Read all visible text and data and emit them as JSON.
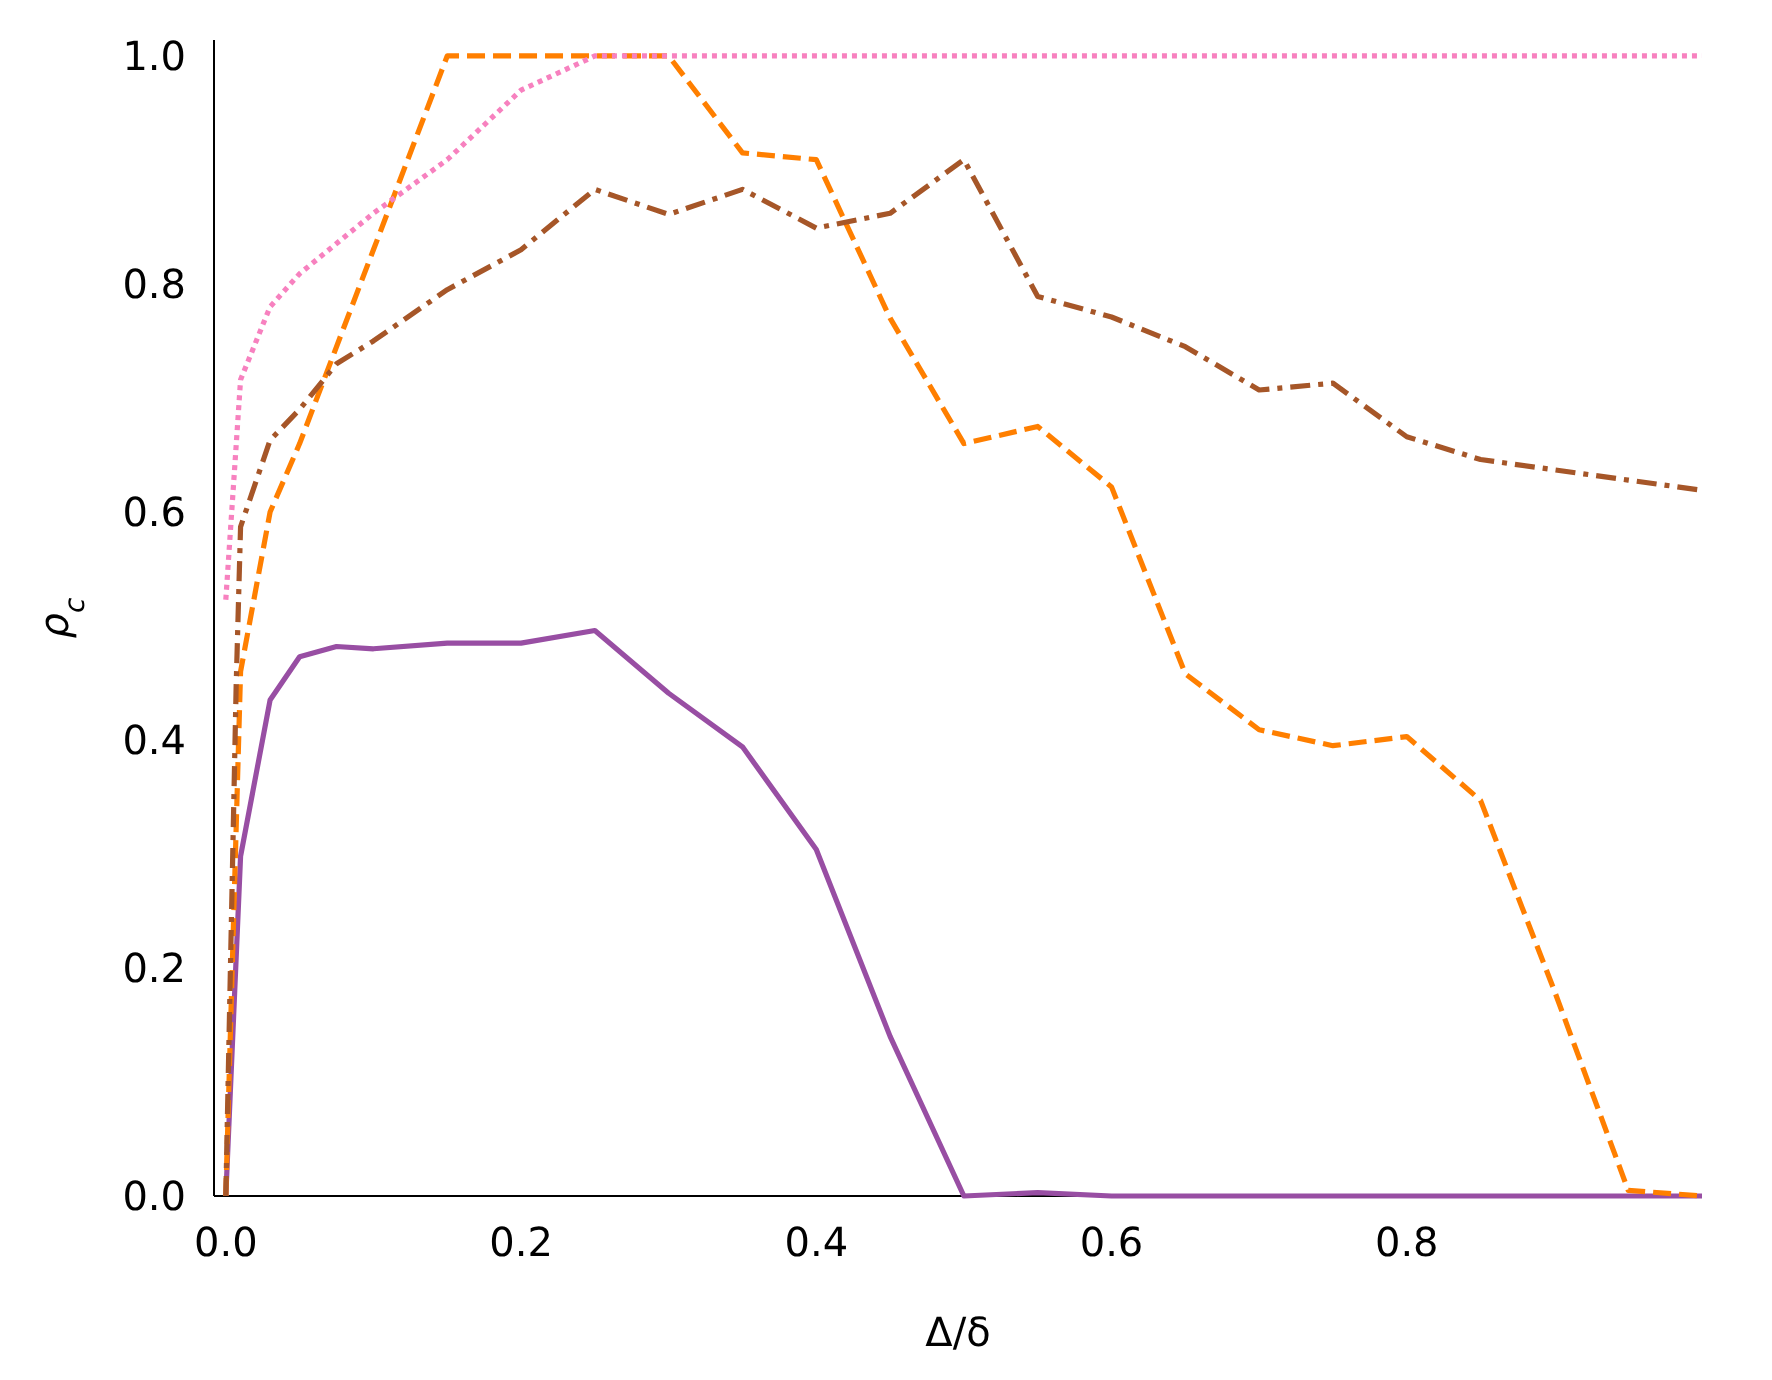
{
  "chart_data": {
    "type": "line",
    "xlabel": "Δ/δ",
    "ylabel": "ρ$_{c}$",
    "xlim": [
      -0.008,
      1
    ],
    "ylim": [
      0,
      1.014
    ],
    "xticks": [
      {
        "value": 0,
        "label": "0.0"
      },
      0.2,
      0.4,
      0.6,
      0.8
    ],
    "yticks": [
      {
        "value": 0,
        "label": "0.0"
      },
      0.2,
      0.4,
      0.6,
      0.8,
      {
        "value": 1,
        "label": "1.0"
      }
    ],
    "grid": false,
    "marker": "none",
    "series": [
      {
        "color": "#984ea3",
        "line_style": "solid",
        "x": [
          0,
          0.01,
          0.03,
          0.05,
          0.075,
          0.1,
          0.15,
          0.2,
          0.25,
          0.3,
          0.35,
          0.4,
          0.45,
          0.5,
          0.55,
          0.6,
          0.65,
          0.7,
          0.75,
          0.8,
          0.85,
          0.9,
          0.95,
          1
        ],
        "values": [
          0,
          0.298,
          0.435,
          0.473,
          0.482,
          0.48,
          0.485,
          0.485,
          0.496,
          0.441,
          0.394,
          0.304,
          0.14,
          0,
          0.003,
          0,
          0,
          0,
          0,
          0,
          0,
          0,
          0,
          0
        ]
      },
      {
        "color": "#ff7f00",
        "line_style": "dashed",
        "x": [
          0,
          0.01,
          0.03,
          0.05,
          0.1,
          0.15,
          0.2,
          0.25,
          0.3,
          0.35,
          0.4,
          0.45,
          0.5,
          0.55,
          0.6,
          0.65,
          0.7,
          0.75,
          0.8,
          0.85,
          0.9,
          0.95,
          1
        ],
        "values": [
          0,
          0.46,
          0.6,
          0.66,
          0.83,
          1,
          1,
          1,
          1,
          0.915,
          0.909,
          0.77,
          0.66,
          0.675,
          0.622,
          0.458,
          0.409,
          0.395,
          0.403,
          0.347,
          0.18,
          0.005,
          0
        ]
      },
      {
        "color": "#a65628",
        "line_style": "dashdot",
        "x": [
          0,
          0.007,
          0.01,
          0.03,
          0.05,
          0.075,
          0.1,
          0.15,
          0.2,
          0.25,
          0.3,
          0.35,
          0.4,
          0.45,
          0.5,
          0.55,
          0.6,
          0.65,
          0.7,
          0.75,
          0.8,
          0.85,
          0.9,
          0.95,
          1
        ],
        "values": [
          0,
          0.447,
          0.587,
          0.663,
          0.69,
          0.73,
          0.75,
          0.795,
          0.83,
          0.883,
          0.861,
          0.883,
          0.849,
          0.862,
          0.909,
          0.789,
          0.771,
          0.745,
          0.707,
          0.713,
          0.666,
          0.646,
          0.637,
          0.628,
          0.619
        ]
      },
      {
        "color": "#f781bf",
        "line_style": "dotted",
        "x": [
          0,
          0.01,
          0.03,
          0.05,
          0.1,
          0.15,
          0.2,
          0.25,
          0.3,
          0.4,
          0.5,
          0.6,
          0.7,
          0.8,
          0.9,
          1
        ],
        "values": [
          0.523,
          0.716,
          0.78,
          0.809,
          0.862,
          0.909,
          0.97,
          1,
          1,
          1,
          1,
          1,
          1,
          1,
          1,
          1
        ]
      }
    ]
  }
}
